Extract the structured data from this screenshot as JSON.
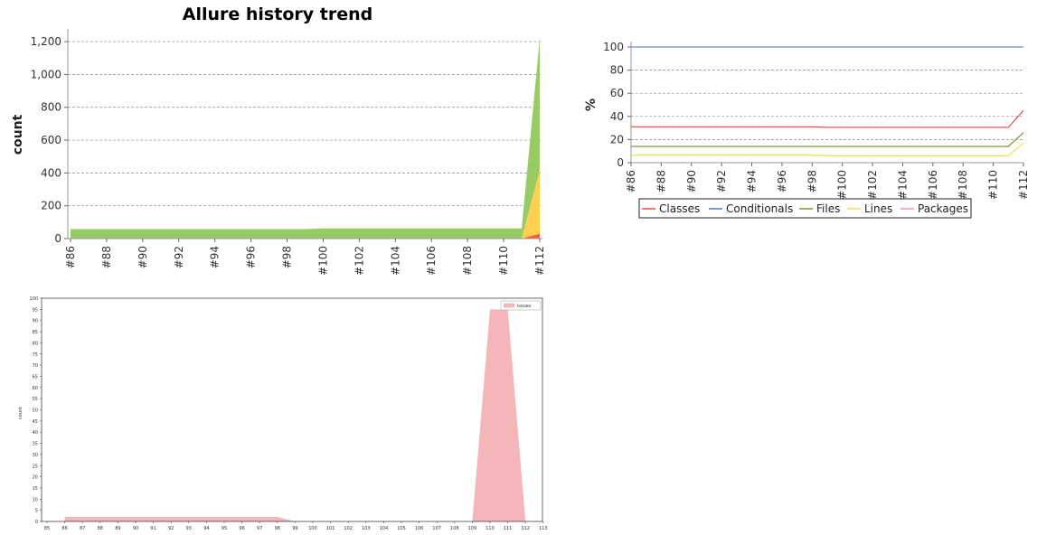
{
  "chart_data": [
    {
      "id": "allure",
      "type": "area",
      "stacked": true,
      "title": "Allure history trend",
      "xlabel": "",
      "ylabel": "count",
      "categories": [
        "#86",
        "#87",
        "#88",
        "#89",
        "#90",
        "#91",
        "#92",
        "#93",
        "#94",
        "#95",
        "#96",
        "#97",
        "#98",
        "#99",
        "#100",
        "#101",
        "#102",
        "#103",
        "#104",
        "#105",
        "#106",
        "#107",
        "#108",
        "#109",
        "#110",
        "#111",
        "#112"
      ],
      "tick_labels": [
        "#86",
        "#88",
        "#90",
        "#92",
        "#94",
        "#96",
        "#98",
        "#100",
        "#102",
        "#104",
        "#106",
        "#108",
        "#110",
        "#112"
      ],
      "yticks": [
        "0",
        "200",
        "400",
        "600",
        "800",
        "1,000",
        "1,200"
      ],
      "ylim": [
        0,
        1250
      ],
      "grid": true,
      "series": [
        {
          "color": "#fd5a3e",
          "values": [
            0,
            0,
            0,
            0,
            0,
            0,
            0,
            0,
            0,
            0,
            0,
            0,
            0,
            0,
            0,
            0,
            0,
            0,
            0,
            0,
            0,
            0,
            0,
            0,
            0,
            0,
            30
          ]
        },
        {
          "color": "#ffd050",
          "values": [
            0,
            0,
            0,
            0,
            0,
            0,
            0,
            0,
            0,
            0,
            0,
            0,
            0,
            0,
            0,
            0,
            0,
            0,
            0,
            0,
            0,
            0,
            0,
            0,
            0,
            0,
            390
          ]
        },
        {
          "color": "#97cc64",
          "values": [
            58,
            58,
            58,
            58,
            58,
            58,
            58,
            58,
            58,
            58,
            58,
            58,
            58,
            58,
            62,
            62,
            62,
            62,
            62,
            62,
            62,
            62,
            62,
            62,
            62,
            62,
            800
          ]
        }
      ]
    },
    {
      "id": "coverage",
      "type": "line",
      "title": "",
      "xlabel": "",
      "ylabel": "%",
      "categories": [
        "#86",
        "#87",
        "#88",
        "#89",
        "#90",
        "#91",
        "#92",
        "#93",
        "#94",
        "#95",
        "#96",
        "#97",
        "#98",
        "#99",
        "#100",
        "#101",
        "#102",
        "#103",
        "#104",
        "#105",
        "#106",
        "#107",
        "#108",
        "#109",
        "#110",
        "#111",
        "#112"
      ],
      "tick_labels": [
        "#86",
        "#88",
        "#90",
        "#92",
        "#94",
        "#96",
        "#98",
        "#100",
        "#102",
        "#104",
        "#106",
        "#108",
        "#110",
        "#112"
      ],
      "yticks": [
        "0",
        "20",
        "40",
        "60",
        "80",
        "100"
      ],
      "ylim": [
        0,
        100
      ],
      "grid": true,
      "legend_position": "bottom",
      "series": [
        {
          "name": "Classes",
          "color": "#e8403a",
          "values": [
            31,
            31,
            31,
            31,
            31,
            31,
            31,
            31,
            31,
            31,
            31,
            31,
            31,
            30.5,
            30.5,
            30.5,
            30.5,
            30.5,
            30.5,
            30.5,
            30.5,
            30.5,
            30.5,
            30.5,
            30.5,
            30.5,
            45
          ]
        },
        {
          "name": "Conditionals",
          "color": "#4a72b8",
          "values": [
            100,
            100,
            100,
            100,
            100,
            100,
            100,
            100,
            100,
            100,
            100,
            100,
            100,
            100,
            100,
            100,
            100,
            100,
            100,
            100,
            100,
            100,
            100,
            100,
            100,
            100,
            100
          ]
        },
        {
          "name": "Files",
          "color": "#6e8f1e",
          "values": [
            14,
            14,
            14,
            14,
            14,
            14,
            14,
            14,
            14,
            14,
            14,
            14,
            14,
            14,
            14,
            14,
            14,
            14,
            14,
            14,
            14,
            14,
            14,
            14,
            14,
            14,
            26
          ]
        },
        {
          "name": "Lines",
          "color": "#f0e040",
          "values": [
            6.5,
            6.5,
            6.5,
            6.5,
            6.5,
            6.5,
            6.5,
            6.5,
            6.5,
            6.5,
            6.5,
            6.5,
            6.5,
            6,
            6,
            6,
            6,
            6,
            6,
            6,
            6,
            6,
            6,
            6,
            6,
            6,
            17
          ]
        },
        {
          "name": "Packages",
          "color": "#f08ca0",
          "values": [
            null,
            null,
            null,
            null,
            null,
            null,
            null,
            null,
            null,
            null,
            null,
            null,
            null,
            null,
            null,
            null,
            null,
            null,
            null,
            null,
            null,
            null,
            null,
            null,
            null,
            null,
            null
          ]
        }
      ]
    },
    {
      "id": "issues",
      "type": "area",
      "title": "",
      "xlabel": "",
      "ylabel": "count",
      "legend_position": "top-right",
      "categories": [
        "85",
        "86",
        "87",
        "88",
        "89",
        "90",
        "91",
        "92",
        "93",
        "94",
        "95",
        "96",
        "97",
        "98",
        "99",
        "100",
        "101",
        "102",
        "103",
        "104",
        "105",
        "106",
        "107",
        "108",
        "109",
        "110",
        "111",
        "112",
        "113"
      ],
      "yticks": [
        "0",
        "5",
        "10",
        "15",
        "20",
        "25",
        "30",
        "35",
        "40",
        "45",
        "50",
        "55",
        "60",
        "65",
        "70",
        "75",
        "80",
        "85",
        "90",
        "95",
        "100"
      ],
      "ylim": [
        0,
        100
      ],
      "series": [
        {
          "name": "issues",
          "color": "#f4b6b8",
          "values": [
            null,
            2,
            2,
            2,
            2,
            2,
            2,
            2,
            2,
            2,
            2,
            2,
            2,
            2,
            0,
            0,
            0,
            0,
            0,
            0,
            0,
            0,
            0,
            0,
            0,
            95,
            95,
            0,
            null
          ]
        }
      ]
    }
  ]
}
